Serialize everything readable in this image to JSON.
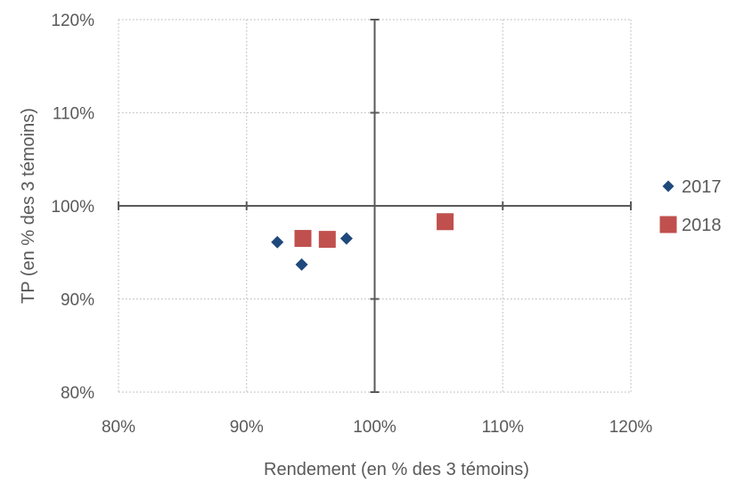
{
  "chart_data": {
    "type": "scatter",
    "title": "",
    "xlabel": "Rendement (en % des 3 témoins)",
    "ylabel": "TP (en % des 3 témoins)",
    "xlim": [
      80,
      120
    ],
    "ylim": [
      80,
      120
    ],
    "x_ticks": [
      80,
      90,
      100,
      110,
      120
    ],
    "y_ticks": [
      80,
      90,
      100,
      110,
      120
    ],
    "x_tick_labels": [
      "80%",
      "90%",
      "100%",
      "110%",
      "120%"
    ],
    "y_tick_labels": [
      "80%",
      "90%",
      "100%",
      "110%",
      "120%"
    ],
    "grid": "dotted",
    "crosshair_at": [
      100,
      100
    ],
    "legend_position": "right",
    "series": [
      {
        "name": "2017",
        "marker": "diamond",
        "color": "#1F497D",
        "points": [
          [
            92.4,
            96.1
          ],
          [
            94.3,
            93.7
          ],
          [
            97.8,
            96.5
          ]
        ]
      },
      {
        "name": "2018",
        "marker": "square",
        "color": "#C0504D",
        "points": [
          [
            94.4,
            96.5
          ],
          [
            96.3,
            96.4
          ],
          [
            105.5,
            98.3
          ]
        ]
      }
    ]
  }
}
